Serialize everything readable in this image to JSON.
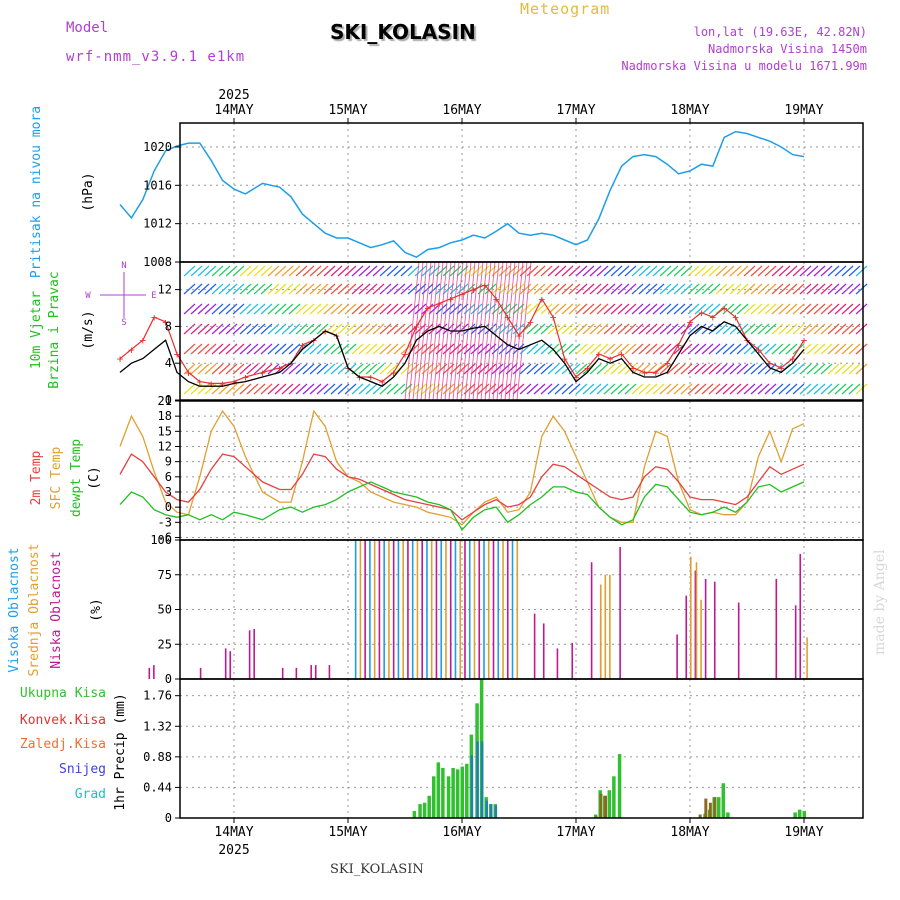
{
  "header": {
    "model_label": "Model",
    "model_name": "wrf-nmm_v3.9.1 e1km",
    "meteogram_label": "Meteogram",
    "station": "SKI_KOLASIN",
    "lonlat": "lon,lat (19.63E, 42.82N)",
    "altitude": "Nadmorska Visina 1450m",
    "altitude_model": "Nadmorska Visina u modelu 1671.99m"
  },
  "footer": {
    "station": "SKI_KOLASIN",
    "watermark": "made by Angel"
  },
  "time_axis": {
    "year": "2025",
    "day_labels": [
      "14MAY",
      "15MAY",
      "16MAY",
      "17MAY",
      "18MAY",
      "19MAY"
    ]
  },
  "colors": {
    "pressure": "#1e9ee8",
    "wind_speed": "#000000",
    "wind_gust": "#e83030",
    "temp_2m": "#e84040",
    "temp_sfc": "#e0a030",
    "dewpoint": "#20c020",
    "cloud_high": "#1e9ee8",
    "cloud_mid": "#e0a030",
    "cloud_low": "#c01890",
    "precip_total": "#30c030",
    "precip_conv": "#e83030",
    "precip_frz": "#f07030",
    "precip_snow": "#4040e0",
    "precip_hail": "#20c0c0"
  },
  "chart_data": [
    {
      "type": "line",
      "panel": "pressure",
      "ylabel_1": "Pritisak na nivou mora",
      "ylabel_2": "(hPa)",
      "yticks": [
        1008,
        1012,
        1016,
        1020
      ],
      "ylim": [
        1008,
        1022.5
      ],
      "x_unit": "days since 14MAY 00UTC",
      "series": [
        {
          "x": [
            -0.5,
            -0.4,
            -0.3,
            -0.2,
            -0.1,
            0.0,
            0.1,
            0.2,
            0.3,
            0.4,
            0.5,
            0.6,
            0.75,
            0.9,
            1.0,
            1.1,
            1.2,
            1.3,
            1.4,
            1.5,
            1.6,
            1.7,
            1.8,
            1.9,
            2.0,
            2.1,
            2.2,
            2.3,
            2.4,
            2.5,
            2.6,
            2.7,
            2.8,
            2.9,
            3.0,
            3.1,
            3.2,
            3.3,
            3.4,
            3.5,
            3.6,
            3.7,
            3.8,
            3.9,
            4.0,
            4.1,
            4.2,
            4.3,
            4.4,
            4.5,
            4.6,
            4.7,
            4.8,
            4.9,
            5.0,
            5.1,
            5.2,
            5.3,
            5.4,
            5.5
          ],
          "values": [
            1014.0,
            1012.6,
            1014.5,
            1017.5,
            1019.6,
            1020.1,
            1020.4,
            1020.4,
            1018.6,
            1016.5,
            1015.6,
            1015.1,
            1016.2,
            1015.8,
            1014.8,
            1013.0,
            1012.0,
            1011.0,
            1010.5,
            1010.5,
            1010.0,
            1009.5,
            1009.8,
            1010.2,
            1009.0,
            1008.5,
            1009.3,
            1009.5,
            1010.0,
            1010.3,
            1010.8,
            1010.5,
            1011.2,
            1012.0,
            1011.0,
            1010.8,
            1011.0,
            1010.8,
            1010.3,
            1009.8,
            1010.3,
            1012.5,
            1015.5,
            1018.0,
            1019.0,
            1019.2,
            1019.0,
            1018.2,
            1017.2,
            1017.5,
            1018.2,
            1018.0,
            1021.0,
            1021.6,
            1021.4,
            1021.0,
            1020.6,
            1020.0,
            1019.2,
            1019.0
          ]
        }
      ]
    },
    {
      "type": "line",
      "panel": "wind",
      "ylabel_1": "10m Vjetar",
      "ylabel_2": "Brzina i Pravac",
      "ylabel_3": "(m/s)",
      "compass": [
        "N",
        "W",
        "E",
        "S"
      ],
      "yticks": [
        0,
        4,
        8,
        12
      ],
      "ylim": [
        0,
        15
      ],
      "x_unit": "days since 14MAY 00UTC",
      "series": [
        {
          "name": "speed",
          "x": [
            -0.5,
            -0.4,
            -0.3,
            -0.2,
            -0.1,
            0.0,
            0.1,
            0.2,
            0.3,
            0.4,
            0.5,
            0.6,
            0.75,
            0.9,
            1.0,
            1.1,
            1.2,
            1.3,
            1.4,
            1.5,
            1.6,
            1.7,
            1.8,
            1.9,
            2.0,
            2.1,
            2.2,
            2.3,
            2.4,
            2.5,
            2.6,
            2.7,
            2.8,
            2.9,
            3.0,
            3.1,
            3.2,
            3.3,
            3.4,
            3.5,
            3.6,
            3.7,
            3.8,
            3.9,
            4.0,
            4.1,
            4.2,
            4.3,
            4.4,
            4.5,
            4.6,
            4.7,
            4.8,
            4.9,
            5.0,
            5.1,
            5.2,
            5.3,
            5.4,
            5.5
          ],
          "values": [
            3.0,
            4.0,
            4.5,
            5.5,
            6.5,
            3.0,
            2.0,
            1.5,
            1.5,
            1.5,
            1.8,
            2.0,
            2.5,
            3.0,
            4.0,
            5.5,
            6.5,
            7.5,
            7.0,
            3.5,
            2.5,
            2.0,
            1.5,
            2.5,
            4.0,
            6.5,
            7.5,
            8.0,
            7.5,
            7.5,
            7.8,
            8.0,
            7.0,
            6.0,
            5.5,
            6.0,
            6.5,
            5.5,
            4.0,
            2.0,
            3.0,
            4.5,
            4.0,
            4.5,
            3.0,
            2.5,
            2.5,
            3.0,
            5.0,
            7.0,
            8.0,
            7.5,
            8.5,
            8.0,
            6.5,
            5.0,
            3.5,
            3.0,
            4.0,
            5.5
          ]
        },
        {
          "name": "gust",
          "x": [
            -0.5,
            -0.4,
            -0.3,
            -0.2,
            -0.1,
            0.0,
            0.1,
            0.2,
            0.3,
            0.4,
            0.5,
            0.6,
            0.75,
            0.9,
            1.0,
            1.1,
            1.2,
            1.3,
            1.4,
            1.5,
            1.6,
            1.7,
            1.8,
            1.9,
            2.0,
            2.1,
            2.2,
            2.3,
            2.4,
            2.5,
            2.6,
            2.7,
            2.8,
            2.9,
            3.0,
            3.1,
            3.2,
            3.3,
            3.4,
            3.5,
            3.6,
            3.7,
            3.8,
            3.9,
            4.0,
            4.1,
            4.2,
            4.3,
            4.4,
            4.5,
            4.6,
            4.7,
            4.8,
            4.9,
            5.0,
            5.1,
            5.2,
            5.3,
            5.4,
            5.5
          ],
          "values": [
            4.5,
            5.5,
            6.5,
            9.0,
            8.5,
            5.0,
            3.0,
            2.0,
            1.8,
            1.8,
            2.0,
            2.5,
            3.0,
            3.5,
            4.0,
            6.0,
            6.5,
            7.5,
            7.0,
            3.5,
            2.5,
            2.5,
            2.0,
            3.0,
            5.0,
            8.0,
            10.0,
            10.5,
            11.0,
            11.5,
            12.0,
            12.5,
            11.0,
            9.0,
            7.0,
            8.5,
            11.0,
            9.0,
            4.5,
            2.5,
            3.5,
            5.0,
            4.5,
            5.0,
            3.5,
            3.0,
            3.0,
            4.0,
            6.0,
            8.5,
            9.5,
            9.0,
            10.0,
            9.0,
            6.5,
            5.5,
            4.0,
            3.5,
            4.5,
            6.5
          ]
        }
      ]
    },
    {
      "type": "line",
      "panel": "temperature",
      "ylabel_1": "2m Temp",
      "ylabel_2": "SFC Temp",
      "ylabel_3": "dewpt Temp",
      "ylabel_4": "(C)",
      "yticks": [
        -6,
        -3,
        0,
        3,
        6,
        9,
        12,
        15,
        18,
        21
      ],
      "ylim": [
        -6.5,
        21
      ],
      "x_unit": "days since 14MAY 00UTC",
      "series": [
        {
          "name": "2m Temp",
          "x": [
            -0.5,
            -0.4,
            -0.3,
            -0.2,
            -0.1,
            0.0,
            0.1,
            0.2,
            0.3,
            0.4,
            0.5,
            0.6,
            0.75,
            0.9,
            1.0,
            1.1,
            1.2,
            1.3,
            1.4,
            1.5,
            1.6,
            1.7,
            1.8,
            1.9,
            2.0,
            2.1,
            2.2,
            2.3,
            2.4,
            2.5,
            2.6,
            2.7,
            2.8,
            2.9,
            3.0,
            3.1,
            3.2,
            3.3,
            3.4,
            3.5,
            3.6,
            3.7,
            3.8,
            3.9,
            4.0,
            4.1,
            4.2,
            4.3,
            4.4,
            4.5,
            4.6,
            4.7,
            4.8,
            4.9,
            5.0,
            5.1,
            5.2,
            5.3,
            5.4,
            5.5
          ],
          "values": [
            6.5,
            10.5,
            9.0,
            6.0,
            3.0,
            1.5,
            1.0,
            3.5,
            7.5,
            10.5,
            10.0,
            8.0,
            5.0,
            3.5,
            3.5,
            6.5,
            10.5,
            10.0,
            7.5,
            6.0,
            5.5,
            4.5,
            3.5,
            2.5,
            1.5,
            1.0,
            0.5,
            0.0,
            -0.5,
            -2.5,
            -1.0,
            0.5,
            1.5,
            0.0,
            0.5,
            2.0,
            6.0,
            8.5,
            8.0,
            6.5,
            5.0,
            3.5,
            2.0,
            1.5,
            2.0,
            6.0,
            8.0,
            7.5,
            5.0,
            2.0,
            1.5,
            1.5,
            1.0,
            0.5,
            2.0,
            5.0,
            8.0,
            6.5,
            7.5,
            8.5
          ]
        },
        {
          "name": "SFC Temp",
          "x": [
            -0.5,
            -0.4,
            -0.3,
            -0.2,
            -0.1,
            0.0,
            0.1,
            0.2,
            0.3,
            0.4,
            0.5,
            0.6,
            0.75,
            0.9,
            1.0,
            1.1,
            1.2,
            1.3,
            1.4,
            1.5,
            1.6,
            1.7,
            1.8,
            1.9,
            2.0,
            2.1,
            2.2,
            2.3,
            2.4,
            2.5,
            2.6,
            2.7,
            2.8,
            2.9,
            3.0,
            3.1,
            3.2,
            3.3,
            3.4,
            3.5,
            3.6,
            3.7,
            3.8,
            3.9,
            4.0,
            4.1,
            4.2,
            4.3,
            4.4,
            4.5,
            4.6,
            4.7,
            4.8,
            4.9,
            5.0,
            5.1,
            5.2,
            5.3,
            5.4,
            5.5
          ],
          "values": [
            12.0,
            18.0,
            14.0,
            7.0,
            1.0,
            -1.0,
            -1.5,
            6.0,
            15.0,
            19.0,
            16.0,
            10.0,
            3.0,
            1.0,
            1.0,
            9.0,
            19.0,
            16.0,
            9.0,
            6.0,
            5.0,
            3.0,
            2.0,
            1.0,
            0.5,
            0.0,
            -1.0,
            -1.5,
            -2.0,
            -3.5,
            -1.0,
            1.0,
            2.0,
            -1.0,
            -0.5,
            3.0,
            14.0,
            18.0,
            15.0,
            10.0,
            5.0,
            0.0,
            -2.0,
            -3.0,
            -3.0,
            8.0,
            15.0,
            14.0,
            5.0,
            -0.5,
            -1.5,
            -1.0,
            -1.5,
            -1.5,
            1.0,
            10.0,
            15.0,
            9.0,
            15.5,
            16.5
          ]
        },
        {
          "name": "dewpt Temp",
          "x": [
            -0.5,
            -0.4,
            -0.3,
            -0.2,
            -0.1,
            0.0,
            0.1,
            0.2,
            0.3,
            0.4,
            0.5,
            0.6,
            0.75,
            0.9,
            1.0,
            1.1,
            1.2,
            1.3,
            1.4,
            1.5,
            1.6,
            1.7,
            1.8,
            1.9,
            2.0,
            2.1,
            2.2,
            2.3,
            2.4,
            2.5,
            2.6,
            2.7,
            2.8,
            2.9,
            3.0,
            3.1,
            3.2,
            3.3,
            3.4,
            3.5,
            3.6,
            3.7,
            3.8,
            3.9,
            4.0,
            4.1,
            4.2,
            4.3,
            4.4,
            4.5,
            4.6,
            4.7,
            4.8,
            4.9,
            5.0,
            5.1,
            5.2,
            5.3,
            5.4,
            5.5
          ],
          "values": [
            0.5,
            3.0,
            2.0,
            -0.5,
            -1.5,
            -2.0,
            -1.5,
            -2.5,
            -1.5,
            -2.5,
            -1.0,
            -1.5,
            -2.5,
            -0.5,
            0.0,
            -1.0,
            0.0,
            0.5,
            1.5,
            3.0,
            4.0,
            5.0,
            4.0,
            3.0,
            2.5,
            2.0,
            1.0,
            0.5,
            -0.5,
            -4.5,
            -2.0,
            -0.5,
            0.0,
            -3.0,
            -1.5,
            0.5,
            2.0,
            4.0,
            4.0,
            3.0,
            2.5,
            0.0,
            -2.0,
            -3.5,
            -2.5,
            2.0,
            4.5,
            4.0,
            1.5,
            -1.0,
            -1.5,
            -1.0,
            0.0,
            -1.0,
            1.0,
            4.0,
            4.5,
            3.0,
            4.0,
            5.0
          ]
        }
      ]
    },
    {
      "type": "bar",
      "panel": "clouds",
      "ylabel_1": "Visoka Oblacnost",
      "ylabel_2": "Srednja Oblacnost",
      "ylabel_3": "Niska Oblacnost",
      "ylabel_4": "(%)",
      "yticks": [
        0,
        25,
        50,
        75,
        100
      ],
      "ylim": [
        0,
        100
      ],
      "x_unit": "days since 14MAY 00UTC",
      "low_x": [
        -0.25,
        -0.21,
        0.2,
        0.42,
        0.46,
        0.63,
        0.67,
        0.92,
        1.04,
        1.17,
        1.21,
        1.33,
        3.13,
        3.21,
        3.33,
        3.46,
        3.63,
        3.71,
        3.88,
        4.38,
        4.46,
        4.54,
        4.63,
        4.71,
        4.92,
        5.25,
        5.42,
        5.46
      ],
      "low_values": [
        8,
        10,
        8,
        22,
        20,
        35,
        36,
        8,
        8,
        10,
        10,
        10,
        47,
        40,
        22,
        26,
        84,
        45,
        95,
        32,
        60,
        78,
        72,
        70,
        55,
        72,
        53,
        90
      ],
      "mid_x": [
        3.71,
        3.75,
        3.79,
        4.5,
        4.55,
        4.59,
        5.52
      ],
      "mid_values": [
        68,
        75,
        75,
        88,
        84,
        57,
        30
      ],
      "overcast_start": 1.56,
      "overcast_end": 3.0,
      "overcast_value": 100
    },
    {
      "type": "bar",
      "panel": "precip",
      "legend": [
        "Ukupna Kisa",
        "Konvek.Kisa",
        "Zaledj.Kisa",
        "Snijeg",
        "Grad"
      ],
      "ylabel": "1hr Precip (mm)",
      "yticks": [
        0,
        0.44,
        0.88,
        1.32,
        1.76
      ],
      "ylim": [
        0,
        2.0
      ],
      "x_unit": "days since 14MAY 00UTC",
      "total_x": [
        2.08,
        2.13,
        2.17,
        2.21,
        2.25,
        2.29,
        2.33,
        2.38,
        2.42,
        2.46,
        2.5,
        2.54,
        2.58,
        2.63,
        2.67,
        2.71,
        2.75,
        2.79,
        3.67,
        3.71,
        3.75,
        3.79,
        3.83,
        3.88,
        4.63,
        4.67,
        4.71,
        4.75,
        4.79,
        4.83,
        5.42,
        5.46,
        5.5
      ],
      "total_values": [
        0.1,
        0.2,
        0.22,
        0.32,
        0.6,
        0.8,
        0.72,
        0.6,
        0.72,
        0.7,
        0.74,
        0.78,
        1.2,
        1.65,
        2.0,
        0.3,
        0.2,
        0.2,
        0.05,
        0.4,
        0.32,
        0.4,
        0.6,
        0.92,
        0.06,
        0.12,
        0.3,
        0.3,
        0.5,
        0.08,
        0.08,
        0.12,
        0.1
      ],
      "snow_x": [
        2.58,
        2.63,
        2.67,
        2.71,
        2.75,
        2.79
      ],
      "snow_values": [
        0.9,
        1.1,
        1.1,
        0.25,
        0.2,
        0.18
      ],
      "mixed_x": [
        3.67,
        3.71,
        3.75,
        4.58,
        4.63,
        4.67,
        4.71
      ],
      "mixed_values": [
        0.02,
        0.35,
        0.32,
        0.05,
        0.28,
        0.22,
        0.3
      ]
    }
  ]
}
